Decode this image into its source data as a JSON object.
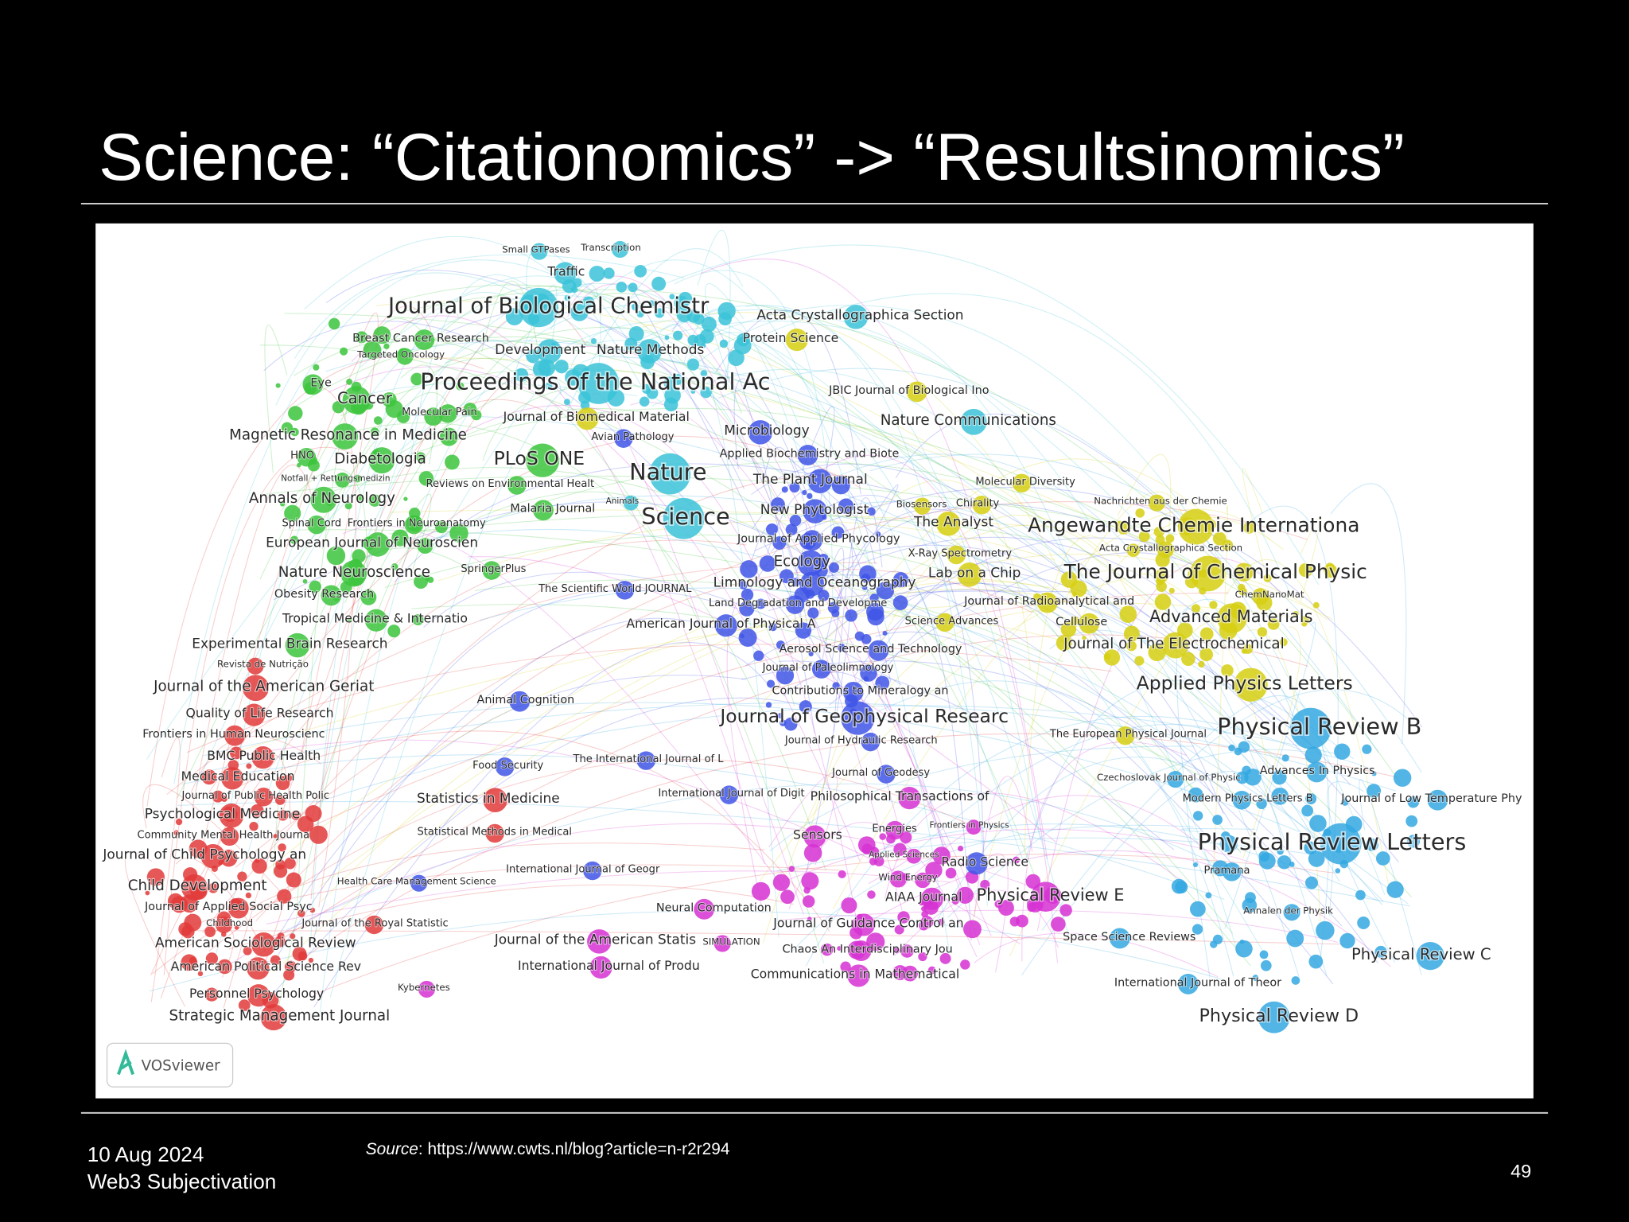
{
  "slide": {
    "title": "Science: “Citationomics” -> “Resultsinomics”",
    "map": {
      "labels": [
        "Small GTPases",
        "Transcription",
        "Traffic",
        "Journal of Biological Chemistr",
        "Acta Crystallographica Section",
        "Breast Cancer Research",
        "Protein Science",
        "Targeted Oncology",
        "Development",
        "Nature Methods",
        "Proceedings of the National Ac",
        "Eye",
        "Cancer",
        "JBIC Journal of Biological Ino",
        "Molecular Pain",
        "Journal of Biomedical Material",
        "Nature Communications",
        "Magnetic Resonance in Medicine",
        "Microbiology",
        "Avian Pathology",
        "HNO",
        "Diabetologia",
        "PLoS ONE",
        "Applied Biochemistry and Biote",
        "Nature",
        "Notfall + Rettungsmedizin",
        "Reviews on Environmental Healt",
        "The Plant Journal",
        "Molecular Diversity",
        "Annals of Neurology",
        "Animals",
        "Malaria Journal",
        "Nachrichten aus der Chemie",
        "Biosensors",
        "Chirality",
        "New Phytologist",
        "Science",
        "The Analyst",
        "Angewandte Chemie Internationa",
        "Spinal Cord",
        "Frontiers in Neuroanatomy",
        "Journal of Applied Phycology",
        "European Journal of Neuroscien",
        "Acta Crystallographica Section",
        "X-Ray Spectrometry",
        "Ecology",
        "Nature Neuroscience",
        "SpringerPlus",
        "Lab on a Chip",
        "The Journal of Chemical Physic",
        "Limnology and Oceanography",
        "The Scientific World JOURNAL",
        "Obesity Research",
        "ChemNanoMat",
        "Land Degradation and Developme",
        "Journal of Radioanalytical and",
        "Tropical Medicine & Internatio",
        "American Journal of Physical A",
        "Science Advances",
        "Cellulose",
        "Advanced Materials",
        "Experimental Brain Research",
        "Journal of The Electrochemical",
        "Aerosol Science and Technology",
        "Revista de Nutrição",
        "Journal of Paleolimnology",
        "Journal of the American Geriat",
        "Applied Physics Letters",
        "Contributions to Mineralogy an",
        "Animal Cognition",
        "Quality of Life Research",
        "Journal of Geophysical Researc",
        "Physical Review B",
        "Frontiers in Human Neuroscienc",
        "The European Physical Journal",
        "Journal of Hydraulic Research",
        "BMC Public Health",
        "The International Journal of L",
        "Food Security",
        "Medical Education",
        "Journal of Geodesy",
        "Advances In Physics",
        "Czechoslovak Journal of Physic",
        "Journal of Public Health Polic",
        "International Journal of Digit",
        "Philosophical Transactions of",
        "Statistics in Medicine",
        "Modern Physics Letters B",
        "Journal of Low Temperature Phy",
        "Psychological Medicine",
        "Energies",
        "Frontiers in Physics",
        "Community Mental Health Journa",
        "Statistical Methods in Medical",
        "Sensors",
        "Physical Review Letters",
        "Journal of Child Psychology an",
        "Applied Sciences",
        "Radio Science",
        "Pramana",
        "International Journal of Geogr",
        "Wind Energy",
        "Health Care Management Science",
        "Child Development",
        "AIAA Journal",
        "Physical Review E",
        "Journal of Applied Social Psyc",
        "Neural Computation",
        "Annalen der Physik",
        "Childhood",
        "Journal of the Royal Statistic",
        "Journal of Guidance Control an",
        "Space Science Reviews",
        "Journal of the American Statis",
        "SIMULATION",
        "American Sociological Review",
        "Chaos An Interdisciplinary Jou",
        "Physical Review C",
        "American Political Science Rev",
        "International Journal of Produ",
        "Communications in Mathematical",
        "International Journal of Theor",
        "Kybernetes",
        "Personnel Psychology",
        "Strategic Management Journal",
        "Physical Review D"
      ],
      "logo": "VOSviewer"
    },
    "footer": {
      "date": "10 Aug 2024",
      "subtitle": "Web3 Subjectivation",
      "source_label": "Source",
      "source_text": ": https://www.cwts.nl/blog?article=n-r2r294",
      "page_number": 49
    }
  }
}
